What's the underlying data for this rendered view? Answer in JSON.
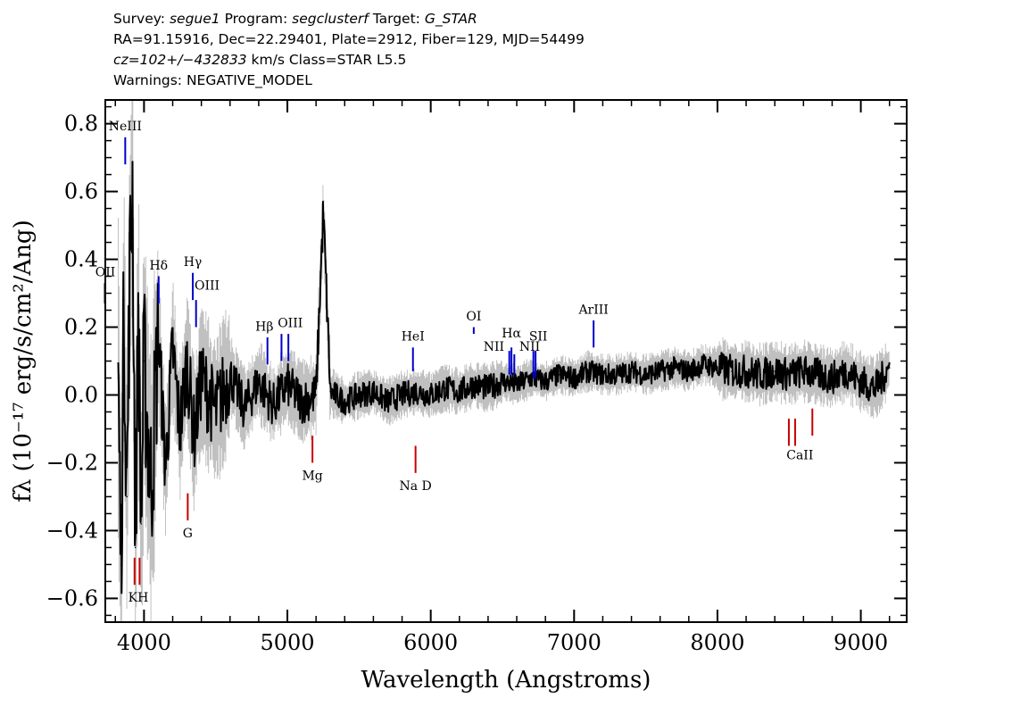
{
  "header": {
    "line1": {
      "survey_label": "Survey:",
      "survey": "segue1",
      "program_label": "Program:",
      "program": "segclusterf",
      "target_label": "Target:",
      "target": "G_STAR"
    },
    "line2": "RA=91.15916, Dec=22.29401, Plate=2912, Fiber=129, MJD=54499",
    "line3": {
      "cz": "cz=102+/−432833",
      "rest": "km/s Class=STAR L5.5"
    },
    "line4": "Warnings: NEGATIVE_MODEL"
  },
  "chart_data": {
    "type": "line",
    "title": "",
    "xlabel": "Wavelength (Angstroms)",
    "ylabel": "fλ (10⁻¹⁷ erg/s/cm²/Ang)",
    "xlim": [
      3730,
      9320
    ],
    "ylim": [
      -0.67,
      0.87
    ],
    "x_ticks": [
      4000,
      5000,
      6000,
      7000,
      8000,
      9000
    ],
    "x_tick_labels": [
      "4000",
      "5000",
      "6000",
      "7000",
      "8000",
      "9000"
    ],
    "y_ticks": [
      -0.6,
      -0.4,
      -0.2,
      0.0,
      0.2,
      0.4,
      0.6,
      0.8
    ],
    "y_tick_labels": [
      "−0.6",
      "−0.4",
      "−0.2",
      "0.0",
      "0.2",
      "0.4",
      "0.6",
      "0.8"
    ],
    "grid": false,
    "series": [
      {
        "color": "#000000",
        "x": [
          3820,
          3840,
          3860,
          3880,
          3900,
          3920,
          3940,
          3960,
          3980,
          4000,
          4050,
          4100,
          4150,
          4200,
          4250,
          4300,
          4350,
          4400,
          4500,
          4600,
          4700,
          4800,
          4900,
          5000,
          5100,
          5200,
          5250,
          5300,
          5400,
          5500,
          5600,
          5700,
          5800,
          5900,
          6000,
          6100,
          6200,
          6300,
          6400,
          6500,
          6600,
          6700,
          6800,
          6900,
          7000,
          7100,
          7200,
          7300,
          7400,
          7500,
          7600,
          7700,
          7800,
          7900,
          8000,
          8100,
          8200,
          8300,
          8400,
          8500,
          8600,
          8700,
          8800,
          8900,
          9000,
          9100,
          9200
        ],
        "y": [
          0.05,
          -0.5,
          0.28,
          -0.3,
          0.35,
          0.62,
          -0.45,
          0.25,
          -0.38,
          0.1,
          -0.28,
          0.18,
          -0.22,
          0.14,
          -0.1,
          0.1,
          -0.12,
          0.05,
          -0.05,
          0.06,
          -0.04,
          0.04,
          -0.03,
          0.03,
          -0.02,
          0.0,
          0.54,
          0.01,
          -0.02,
          0.0,
          0.01,
          -0.02,
          0.0,
          0.01,
          0.0,
          0.02,
          0.01,
          0.03,
          0.02,
          0.04,
          0.03,
          0.05,
          0.04,
          0.06,
          0.05,
          0.07,
          0.06,
          0.06,
          0.07,
          0.06,
          0.07,
          0.08,
          0.07,
          0.09,
          0.08,
          0.07,
          0.07,
          0.06,
          0.07,
          0.06,
          0.07,
          0.06,
          0.05,
          0.07,
          0.04,
          0.02,
          0.08
        ]
      }
    ],
    "emission_lines": [
      {
        "label": "OII",
        "x": 3727,
        "y1": 0.27,
        "y2": 0.33,
        "color": "#000000"
      },
      {
        "label": "NeIII",
        "x": 3869,
        "y1": 0.68,
        "y2": 0.76,
        "color": "#0000c8"
      },
      {
        "label": "Hδ",
        "x": 4102,
        "y1": 0.27,
        "y2": 0.35,
        "color": "#0000c8"
      },
      {
        "label": "Hγ",
        "x": 4340,
        "y1": 0.28,
        "y2": 0.36,
        "color": "#0000c8"
      },
      {
        "label": "OIII",
        "x": 4363,
        "y1": 0.2,
        "y2": 0.28,
        "color": "#0000c8"
      },
      {
        "label": "Hβ",
        "x": 4861,
        "y1": 0.09,
        "y2": 0.17,
        "color": "#0000c8"
      },
      {
        "label": "OIII",
        "x": 4959,
        "y1": 0.1,
        "y2": 0.18,
        "color": "#0000c8"
      },
      {
        "label": "OIII",
        "x": 5007,
        "y1": 0.1,
        "y2": 0.18,
        "color": "#0000c8"
      },
      {
        "label": "HeI",
        "x": 5876,
        "y1": 0.07,
        "y2": 0.14,
        "color": "#0000c8"
      },
      {
        "label": "OI",
        "x": 6300,
        "y1": 0.18,
        "y2": 0.2,
        "color": "#0000c8"
      },
      {
        "label": "NII",
        "x": 6548,
        "y1": 0.06,
        "y2": 0.13,
        "color": "#0000c8"
      },
      {
        "label": "Hα",
        "x": 6563,
        "y1": 0.06,
        "y2": 0.14,
        "color": "#0000c8"
      },
      {
        "label": "NII",
        "x": 6583,
        "y1": 0.06,
        "y2": 0.12,
        "color": "#0000c8"
      },
      {
        "label": "SII",
        "x": 6716,
        "y1": 0.05,
        "y2": 0.13,
        "color": "#0000c8"
      },
      {
        "label": "SII",
        "x": 6731,
        "y1": 0.05,
        "y2": 0.13,
        "color": "#0000c8"
      },
      {
        "label": "ArIII",
        "x": 7136,
        "y1": 0.14,
        "y2": 0.22,
        "color": "#0000c8"
      }
    ],
    "absorption_lines": [
      {
        "label": "K",
        "x": 3934,
        "y1": -0.56,
        "y2": -0.48,
        "color": "#c80000"
      },
      {
        "label": "H",
        "x": 3969,
        "y1": -0.56,
        "y2": -0.48,
        "color": "#c80000"
      },
      {
        "label": "G",
        "x": 4305,
        "y1": -0.37,
        "y2": -0.29,
        "color": "#c80000"
      },
      {
        "label": "Mg",
        "x": 5175,
        "y1": -0.2,
        "y2": -0.12,
        "color": "#c80000"
      },
      {
        "label": "Na D",
        "x": 5894,
        "y1": -0.23,
        "y2": -0.15,
        "color": "#c80000"
      },
      {
        "label": "CaII",
        "x": 8498,
        "y1": -0.15,
        "y2": -0.07,
        "color": "#c80000"
      },
      {
        "label": "CaII",
        "x": 8542,
        "y1": -0.15,
        "y2": -0.07,
        "color": "#c80000"
      },
      {
        "label": "CaII",
        "x": 8662,
        "y1": -0.12,
        "y2": -0.04,
        "color": "#c80000"
      }
    ],
    "line_labels": [
      {
        "text": "OII",
        "x": 3730,
        "y": 0.35
      },
      {
        "text": "NeIII",
        "x": 3869,
        "y": 0.78
      },
      {
        "text": "Hδ",
        "x": 4102,
        "y": 0.37
      },
      {
        "text": "Hγ",
        "x": 4340,
        "y": 0.38
      },
      {
        "text": "OIII",
        "x": 4440,
        "y": 0.31
      },
      {
        "text": "Hβ",
        "x": 4840,
        "y": 0.19
      },
      {
        "text": "OIII",
        "x": 5020,
        "y": 0.2
      },
      {
        "text": "HeI",
        "x": 5876,
        "y": 0.16
      },
      {
        "text": "OI",
        "x": 6300,
        "y": 0.22
      },
      {
        "text": "NII",
        "x": 6440,
        "y": 0.13
      },
      {
        "text": "Hα",
        "x": 6563,
        "y": 0.17
      },
      {
        "text": "NII",
        "x": 6690,
        "y": 0.13
      },
      {
        "text": "SII",
        "x": 6750,
        "y": 0.16
      },
      {
        "text": "ArIII",
        "x": 7136,
        "y": 0.24
      },
      {
        "text": "Mg",
        "x": 5175,
        "y": -0.25
      },
      {
        "text": "Na  D",
        "x": 5894,
        "y": -0.28
      },
      {
        "text": "G",
        "x": 4305,
        "y": -0.42
      },
      {
        "text": "KH",
        "x": 3960,
        "y": -0.61
      },
      {
        "text": "CaII",
        "x": 8575,
        "y": -0.19
      }
    ]
  }
}
